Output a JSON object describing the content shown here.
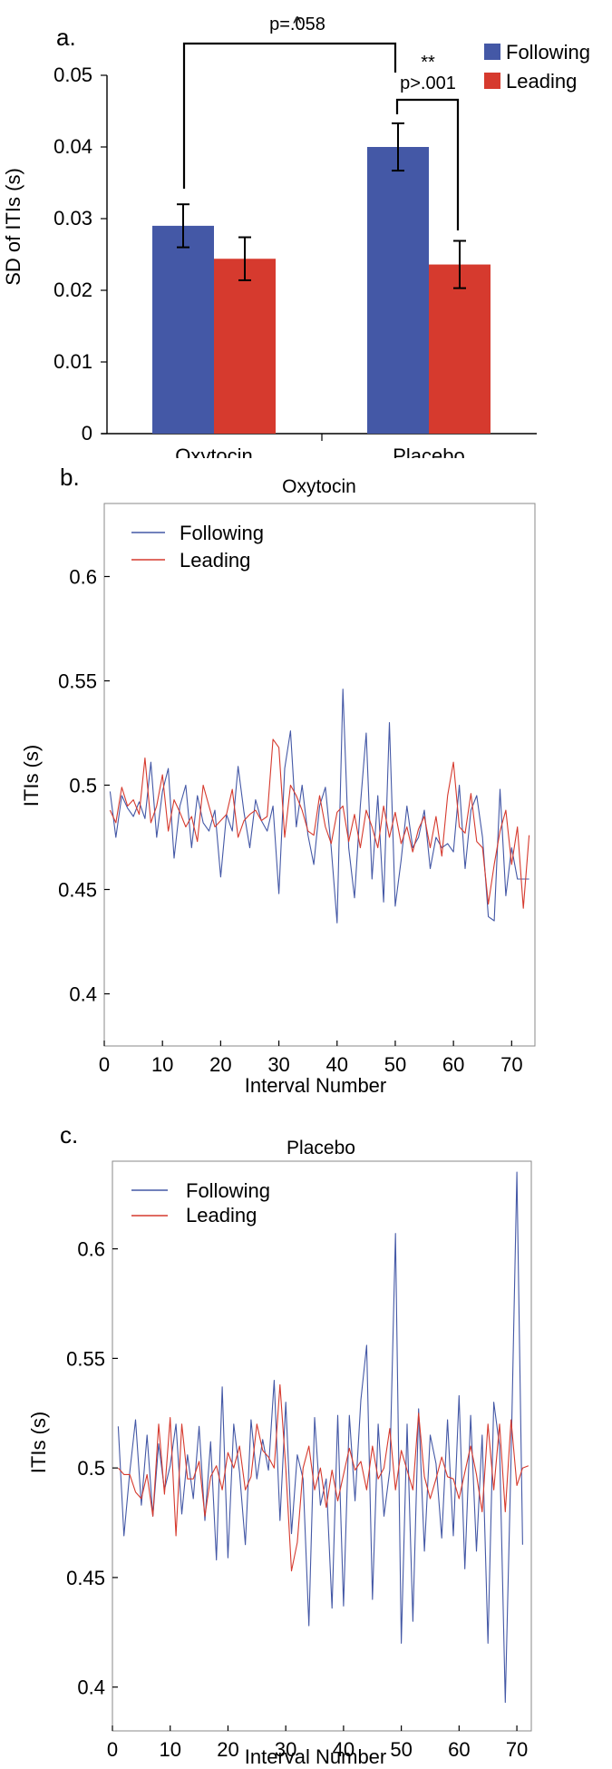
{
  "colors": {
    "following": "#4458a6",
    "leading": "#d63a2e"
  },
  "chart_data": [
    {
      "type": "bar",
      "panel_label": "a.",
      "title": "",
      "ylabel": "SD of ITIs (s)",
      "xlabel": "",
      "categories": [
        "Oxytocin",
        "Placebo"
      ],
      "series": [
        {
          "name": "Following",
          "values": [
            0.029,
            0.04
          ],
          "errors": [
            0.003,
            0.0033
          ]
        },
        {
          "name": "Leading",
          "values": [
            0.0244,
            0.0236
          ],
          "errors": [
            0.003,
            0.0033
          ]
        }
      ],
      "ylim": [
        0,
        0.05
      ],
      "yticks": [
        0,
        0.01,
        0.02,
        0.03,
        0.04,
        0.05
      ],
      "ytick_labels": [
        "0",
        "0.01",
        "0.02",
        "0.03",
        "0.04",
        "0.05"
      ],
      "legend_position": "top-right",
      "annotations": [
        {
          "text": "p=.058",
          "caret": "^"
        },
        {
          "text": "p>.001",
          "stars": "**"
        }
      ]
    },
    {
      "type": "line",
      "panel_label": "b.",
      "title": "Oxytocin",
      "xlabel": "Interval Number",
      "ylabel": "ITIs (s)",
      "xlim": [
        0,
        74
      ],
      "ylim": [
        0.375,
        0.635
      ],
      "xticks": [
        0,
        10,
        20,
        30,
        40,
        50,
        60,
        70
      ],
      "xtick_labels": [
        "0",
        "10",
        "20",
        "30",
        "40",
        "50",
        "60",
        "70"
      ],
      "yticks": [
        0.4,
        0.45,
        0.5,
        0.55,
        0.6
      ],
      "ytick_labels": [
        "0.4",
        "0.45",
        "0.5",
        "0.55",
        "0.6"
      ],
      "legend_position": "top-left",
      "series": [
        {
          "name": "Following",
          "x_start": 1,
          "values": [
            0.497,
            0.475,
            0.495,
            0.489,
            0.485,
            0.492,
            0.484,
            0.511,
            0.475,
            0.497,
            0.508,
            0.465,
            0.49,
            0.5,
            0.47,
            0.495,
            0.482,
            0.478,
            0.488,
            0.456,
            0.486,
            0.478,
            0.509,
            0.487,
            0.47,
            0.493,
            0.483,
            0.478,
            0.49,
            0.448,
            0.508,
            0.526,
            0.48,
            0.5,
            0.476,
            0.462,
            0.49,
            0.499,
            0.47,
            0.434,
            0.546,
            0.47,
            0.446,
            0.49,
            0.525,
            0.455,
            0.495,
            0.444,
            0.53,
            0.442,
            0.464,
            0.49,
            0.47,
            0.475,
            0.488,
            0.46,
            0.475,
            0.47,
            0.472,
            0.468,
            0.5,
            0.46,
            0.488,
            0.495,
            0.475,
            0.437,
            0.435,
            0.498,
            0.447,
            0.47,
            0.455,
            0.455,
            0.455
          ],
          "color_key": "following"
        },
        {
          "name": "Leading",
          "x_start": 1,
          "values": [
            0.488,
            0.482,
            0.499,
            0.49,
            0.493,
            0.486,
            0.513,
            0.482,
            0.49,
            0.505,
            0.478,
            0.493,
            0.487,
            0.48,
            0.485,
            0.473,
            0.5,
            0.49,
            0.48,
            0.483,
            0.486,
            0.498,
            0.475,
            0.483,
            0.486,
            0.488,
            0.483,
            0.485,
            0.522,
            0.518,
            0.475,
            0.5,
            0.495,
            0.488,
            0.478,
            0.476,
            0.495,
            0.48,
            0.472,
            0.487,
            0.49,
            0.473,
            0.486,
            0.47,
            0.488,
            0.48,
            0.47,
            0.49,
            0.475,
            0.487,
            0.472,
            0.48,
            0.468,
            0.479,
            0.485,
            0.47,
            0.485,
            0.466,
            0.495,
            0.511,
            0.48,
            0.477,
            0.496,
            0.473,
            0.47,
            0.443,
            0.462,
            0.478,
            0.488,
            0.462,
            0.48,
            0.441,
            0.476
          ],
          "color_key": "leading"
        }
      ]
    },
    {
      "type": "line",
      "panel_label": "c.",
      "title": "Placebo",
      "xlabel": "Interval Number",
      "ylabel": "ITIs (s)",
      "xlim": [
        0,
        72.5
      ],
      "ylim": [
        0.38,
        0.64
      ],
      "xticks": [
        0,
        10,
        20,
        30,
        40,
        50,
        60,
        70
      ],
      "xtick_labels": [
        "0",
        "10",
        "20",
        "30",
        "40",
        "50",
        "60",
        "70"
      ],
      "yticks": [
        0.4,
        0.45,
        0.5,
        0.55,
        0.6
      ],
      "ytick_labels": [
        "0.4",
        "0.45",
        "0.5",
        "0.55",
        "0.6"
      ],
      "legend_position": "top-left",
      "series": [
        {
          "name": "Following",
          "x_start": 1,
          "values": [
            0.519,
            0.469,
            0.498,
            0.522,
            0.483,
            0.515,
            0.478,
            0.511,
            0.49,
            0.501,
            0.52,
            0.479,
            0.506,
            0.486,
            0.519,
            0.476,
            0.512,
            0.458,
            0.537,
            0.459,
            0.52,
            0.498,
            0.465,
            0.522,
            0.495,
            0.513,
            0.499,
            0.54,
            0.476,
            0.53,
            0.47,
            0.506,
            0.495,
            0.428,
            0.523,
            0.483,
            0.495,
            0.436,
            0.524,
            0.437,
            0.524,
            0.485,
            0.531,
            0.556,
            0.44,
            0.52,
            0.478,
            0.499,
            0.607,
            0.42,
            0.52,
            0.43,
            0.527,
            0.462,
            0.515,
            0.502,
            0.468,
            0.522,
            0.469,
            0.533,
            0.454,
            0.524,
            0.462,
            0.515,
            0.42,
            0.53,
            0.51,
            0.393,
            0.505,
            0.635,
            0.465
          ],
          "color_key": "following"
        },
        {
          "name": "Leading",
          "x_start": 1,
          "values": [
            0.5,
            0.497,
            0.497,
            0.489,
            0.486,
            0.497,
            0.478,
            0.52,
            0.488,
            0.523,
            0.469,
            0.52,
            0.495,
            0.495,
            0.503,
            0.478,
            0.496,
            0.501,
            0.49,
            0.507,
            0.5,
            0.51,
            0.49,
            0.496,
            0.52,
            0.508,
            0.505,
            0.5,
            0.538,
            0.5,
            0.453,
            0.466,
            0.5,
            0.51,
            0.49,
            0.5,
            0.482,
            0.499,
            0.485,
            0.497,
            0.509,
            0.499,
            0.503,
            0.49,
            0.51,
            0.495,
            0.5,
            0.518,
            0.49,
            0.508,
            0.499,
            0.49,
            0.525,
            0.496,
            0.486,
            0.495,
            0.505,
            0.496,
            0.495,
            0.486,
            0.498,
            0.51,
            0.497,
            0.48,
            0.52,
            0.49,
            0.52,
            0.48,
            0.522,
            0.492,
            0.5,
            0.501
          ],
          "color_key": "leading"
        }
      ]
    }
  ]
}
